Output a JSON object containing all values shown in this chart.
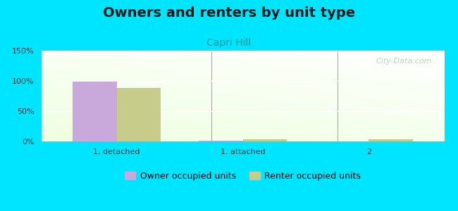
{
  "title": "Owners and renters by unit type",
  "subtitle": "Capri Hill",
  "categories": [
    "1, detached",
    "1, attached",
    "2"
  ],
  "owner_values": [
    99,
    1,
    0
  ],
  "renter_values": [
    88,
    4,
    4
  ],
  "owner_color": "#c9a8dc",
  "renter_color": "#c8cc8a",
  "ylim": [
    0,
    150
  ],
  "yticks": [
    0,
    50,
    100,
    150
  ],
  "yticklabels": [
    "0%",
    "50%",
    "100%",
    "150%"
  ],
  "bar_width": 0.35,
  "background_color": "#00e5ff",
  "title_fontsize": 14,
  "subtitle_fontsize": 10,
  "subtitle_color": "#009999",
  "watermark": "City-Data.com",
  "legend_owner": "Owner occupied units",
  "legend_renter": "Renter occupied units"
}
